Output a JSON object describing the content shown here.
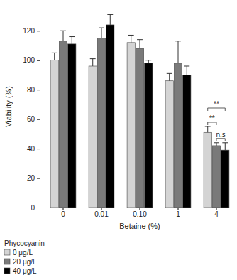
{
  "chart_data": {
    "type": "bar",
    "x_label": "Betaine (%)",
    "y_label": "Viability (%)",
    "categories": [
      "0",
      "0.01",
      "0.10",
      "1",
      "4"
    ],
    "series": [
      {
        "name": "0 μg/L",
        "color": "#d4d4d4",
        "values": [
          100,
          96,
          112,
          86,
          51
        ],
        "errors": [
          5,
          5,
          5,
          5,
          4
        ]
      },
      {
        "name": "20 μg/L",
        "color": "#7a7a7a",
        "values": [
          113,
          115,
          108,
          98,
          42
        ],
        "errors": [
          7,
          7,
          6,
          15,
          2
        ]
      },
      {
        "name": "40 μg/L",
        "color": "#000000",
        "values": [
          111,
          124,
          98,
          90,
          39
        ],
        "errors": [
          5,
          7,
          2,
          6,
          5
        ]
      }
    ],
    "legend_title": "Phycocyanin",
    "legend": "bottom",
    "ylim": [
      0,
      137
    ],
    "yticks": [
      0,
      20,
      40,
      60,
      80,
      100,
      120
    ],
    "annotations": [
      {
        "text": "**",
        "category": "4",
        "series": [
          0,
          2
        ]
      },
      {
        "text": "**",
        "category": "4",
        "series": [
          0,
          1
        ]
      },
      {
        "text": "n.s",
        "category": "4",
        "series": [
          1,
          2
        ]
      }
    ]
  }
}
